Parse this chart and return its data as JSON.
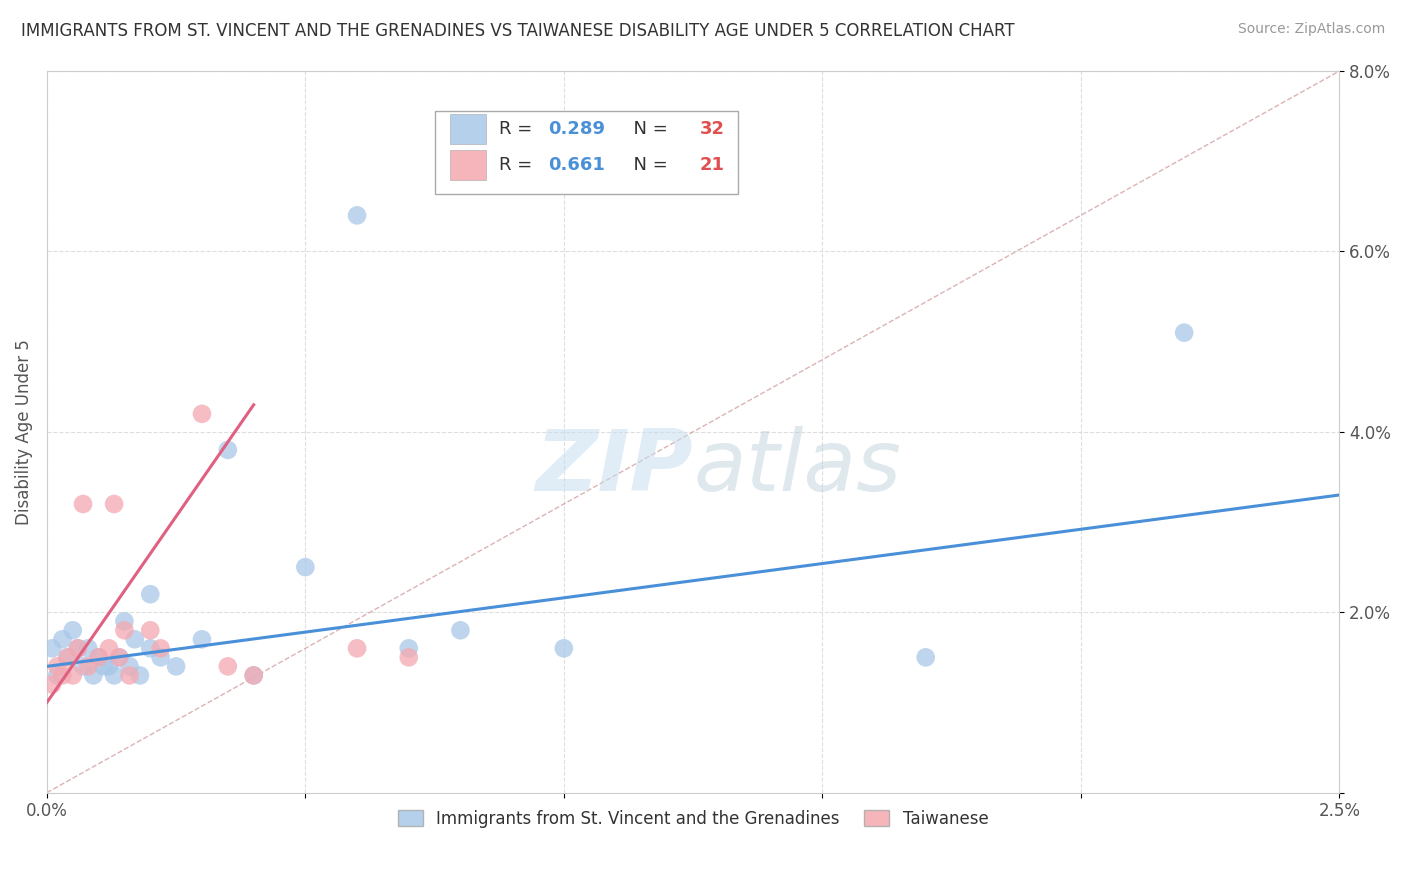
{
  "title": "IMMIGRANTS FROM ST. VINCENT AND THE GRENADINES VS TAIWANESE DISABILITY AGE UNDER 5 CORRELATION CHART",
  "source": "Source: ZipAtlas.com",
  "ylabel": "Disability Age Under 5",
  "xlim": [
    0.0,
    0.025
  ],
  "ylim": [
    0.0,
    0.08
  ],
  "blue_R": "0.289",
  "blue_N": "32",
  "pink_R": "0.661",
  "pink_N": "21",
  "blue_color": "#a8c8e8",
  "pink_color": "#f4a8b0",
  "blue_line_color": "#4a90d9",
  "pink_line_color": "#e06080",
  "R_color": "#4a90d9",
  "N_color": "#e05050",
  "watermark_zip": "ZIP",
  "watermark_atlas": "atlas",
  "blue_scatter_x": [
    0.0001,
    0.0002,
    0.0003,
    0.0004,
    0.0005,
    0.0006,
    0.0007,
    0.0008,
    0.0009,
    0.001,
    0.0011,
    0.0012,
    0.0013,
    0.0014,
    0.0015,
    0.0016,
    0.0017,
    0.0018,
    0.002,
    0.002,
    0.0022,
    0.0025,
    0.003,
    0.0035,
    0.004,
    0.005,
    0.006,
    0.007,
    0.008,
    0.01,
    0.017,
    0.022
  ],
  "blue_scatter_y": [
    0.016,
    0.013,
    0.017,
    0.015,
    0.018,
    0.016,
    0.014,
    0.016,
    0.013,
    0.015,
    0.014,
    0.014,
    0.013,
    0.015,
    0.019,
    0.014,
    0.017,
    0.013,
    0.016,
    0.022,
    0.015,
    0.014,
    0.017,
    0.038,
    0.013,
    0.025,
    0.064,
    0.016,
    0.018,
    0.016,
    0.015,
    0.051
  ],
  "pink_scatter_x": [
    0.0001,
    0.0002,
    0.0003,
    0.0004,
    0.0005,
    0.0006,
    0.0007,
    0.0008,
    0.001,
    0.0012,
    0.0013,
    0.0014,
    0.0015,
    0.0016,
    0.002,
    0.0022,
    0.003,
    0.0035,
    0.004,
    0.006,
    0.007
  ],
  "pink_scatter_y": [
    0.012,
    0.014,
    0.013,
    0.015,
    0.013,
    0.016,
    0.032,
    0.014,
    0.015,
    0.016,
    0.032,
    0.015,
    0.018,
    0.013,
    0.018,
    0.016,
    0.042,
    0.014,
    0.013,
    0.016,
    0.015
  ],
  "blue_line_x": [
    0.0,
    0.025
  ],
  "blue_line_y": [
    0.014,
    0.033
  ],
  "pink_line_x": [
    0.0,
    0.004
  ],
  "pink_line_y": [
    0.01,
    0.043
  ],
  "diag_line_color": "#d4a0a0",
  "grid_color": "#d0d0d0",
  "background_color": "#ffffff",
  "legend_label_blue": "Immigrants from St. Vincent and the Grenadines",
  "legend_label_pink": "Taiwanese"
}
